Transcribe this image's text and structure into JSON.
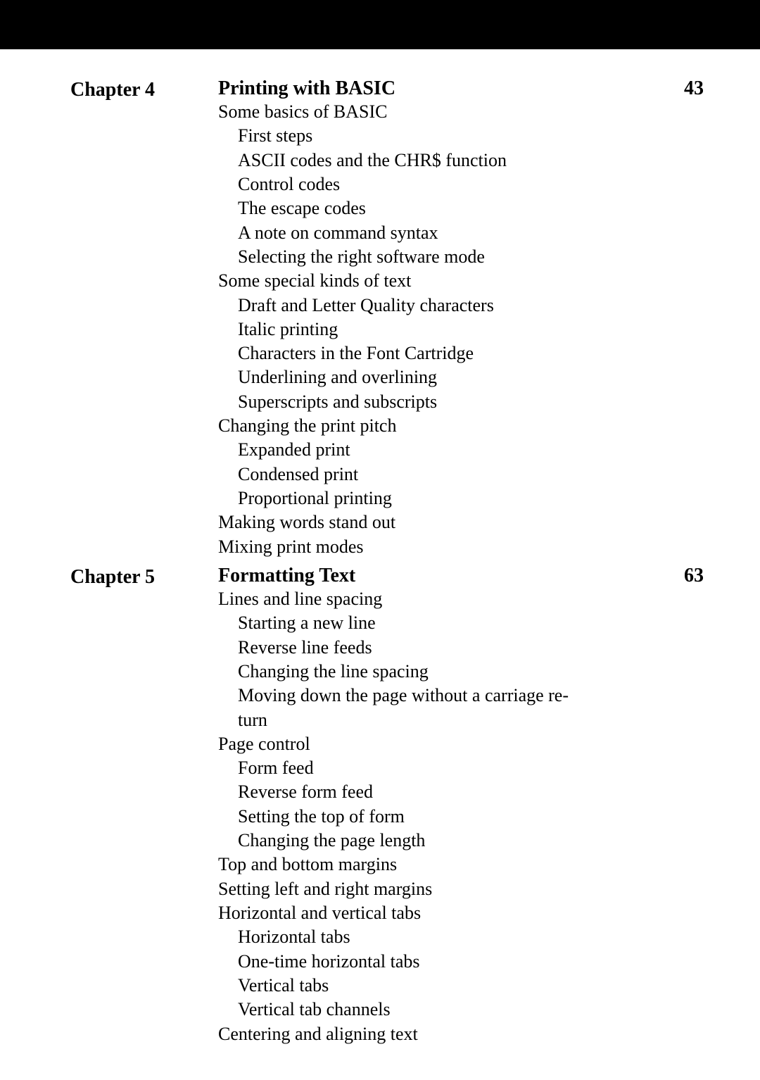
{
  "chapters": [
    {
      "label": "Chapter 4",
      "title": "Printing with BASIC",
      "page": "43",
      "lines": [
        {
          "text": "Some basics of BASIC",
          "indent": 1
        },
        {
          "text": "First steps",
          "indent": 2
        },
        {
          "text": "ASCII codes and the CHR$ function",
          "indent": 2
        },
        {
          "text": "Control codes",
          "indent": 2
        },
        {
          "text": "The escape codes",
          "indent": 2
        },
        {
          "text": "A note on command syntax",
          "indent": 2
        },
        {
          "text": "Selecting the right software mode",
          "indent": 2
        },
        {
          "text": "Some special kinds of text",
          "indent": 1
        },
        {
          "text": "Draft and Letter Quality characters",
          "indent": 2
        },
        {
          "text": "Italic printing",
          "indent": 2
        },
        {
          "text": "Characters in the Font Cartridge",
          "indent": 2
        },
        {
          "text": "Underlining and overlining",
          "indent": 2
        },
        {
          "text": "Superscripts and subscripts",
          "indent": 2
        },
        {
          "text": "Changing the print pitch",
          "indent": 1
        },
        {
          "text": "Expanded print",
          "indent": 2
        },
        {
          "text": "Condensed print",
          "indent": 2
        },
        {
          "text": "Proportional printing",
          "indent": 2
        },
        {
          "text": "Making words stand out",
          "indent": 1
        },
        {
          "text": "Mixing print modes",
          "indent": 1
        }
      ]
    },
    {
      "label": "Chapter 5",
      "title": "Formatting Text",
      "page": "63",
      "lines": [
        {
          "text": "Lines and line spacing",
          "indent": 1
        },
        {
          "text": "Starting a new line",
          "indent": 2
        },
        {
          "text": "Reverse line feeds",
          "indent": 2
        },
        {
          "text": "Changing the line spacing",
          "indent": 2
        },
        {
          "text": "Moving down the page without a carriage re-",
          "indent": 2
        },
        {
          "text": "turn",
          "indent": 2
        },
        {
          "text": "Page control",
          "indent": 1
        },
        {
          "text": "Form feed",
          "indent": 2
        },
        {
          "text": "Reverse form feed",
          "indent": 2
        },
        {
          "text": "Setting the top of form",
          "indent": 2
        },
        {
          "text": "Changing the page length",
          "indent": 2
        },
        {
          "text": "Top and bottom margins",
          "indent": 1
        },
        {
          "text": "Setting left and right margins",
          "indent": 1
        },
        {
          "text": "Horizontal and vertical tabs",
          "indent": 1
        },
        {
          "text": "Horizontal tabs",
          "indent": 2
        },
        {
          "text": "One-time horizontal tabs",
          "indent": 2
        },
        {
          "text": "Vertical tabs",
          "indent": 2
        },
        {
          "text": "Vertical tab channels",
          "indent": 2
        },
        {
          "text": "Centering and aligning text",
          "indent": 1
        }
      ]
    }
  ]
}
